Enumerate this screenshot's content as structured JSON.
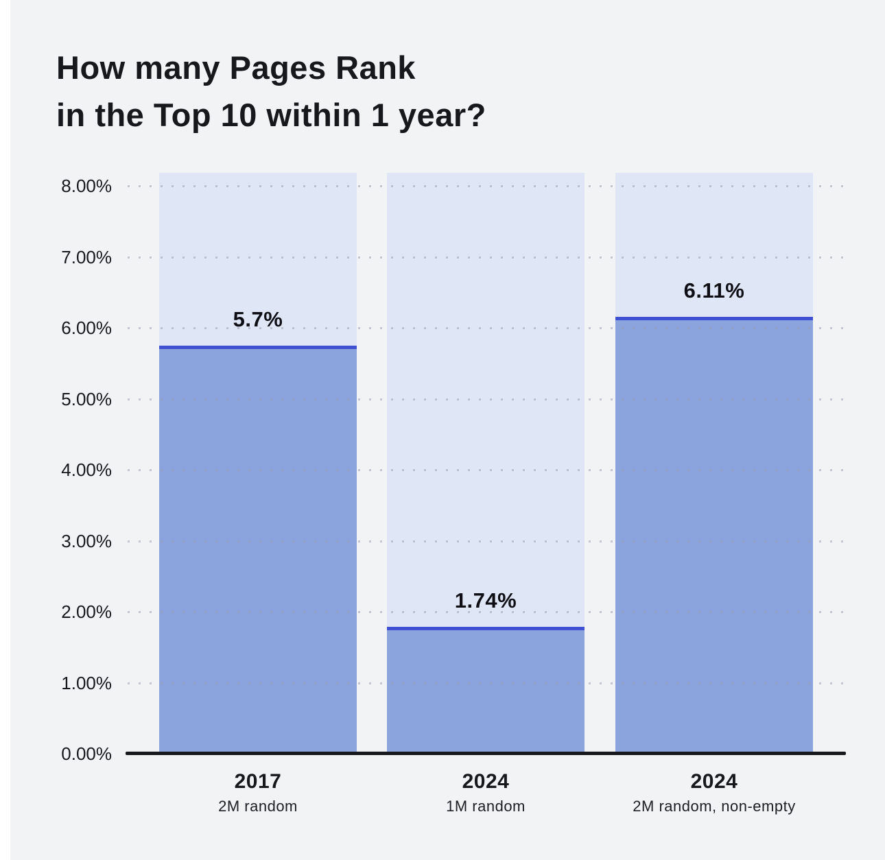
{
  "title": {
    "line1": "How many Pages Rank",
    "line2": "in the Top 10 within 1 year?"
  },
  "chart_data": {
    "type": "bar",
    "categories": [
      "2017",
      "2024",
      "2024"
    ],
    "category_sublabels": [
      "2M random",
      "1M random",
      "2M random, non-empty"
    ],
    "values": [
      5.7,
      1.74,
      6.11
    ],
    "value_labels": [
      "5.7%",
      "1.74%",
      "6.11%"
    ],
    "y_ticks": [
      "8.00%",
      "7.00%",
      "6.00%",
      "5.00%",
      "4.00%",
      "3.00%",
      "2.00%",
      "1.00%",
      "0.00%"
    ],
    "y_tick_values": [
      8,
      7,
      6,
      5,
      4,
      3,
      2,
      1,
      0
    ],
    "ylim": [
      0,
      8.18
    ],
    "grid": "dotted horizontal gridlines at each 1%",
    "legend": "none",
    "colors": {
      "page_background": "#ffffff",
      "card_background": "#f2f3f5",
      "column_background": "#dfe7f7",
      "bar_fill": "#8ba4dd",
      "bar_top_stroke": "#3f50d3",
      "grid_dot": "#9aa1b0",
      "axis_line": "#16181c",
      "text": "#16181c"
    }
  }
}
